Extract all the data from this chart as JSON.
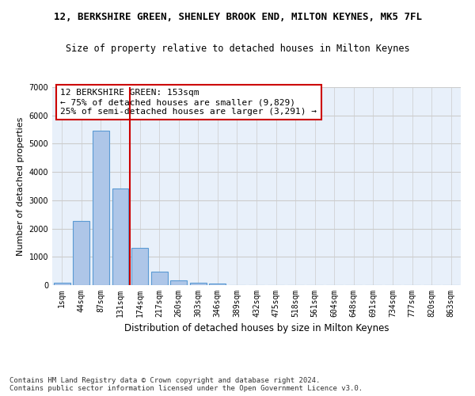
{
  "title": "12, BERKSHIRE GREEN, SHENLEY BROOK END, MILTON KEYNES, MK5 7FL",
  "subtitle": "Size of property relative to detached houses in Milton Keynes",
  "xlabel": "Distribution of detached houses by size in Milton Keynes",
  "ylabel": "Number of detached properties",
  "categories": [
    "1sqm",
    "44sqm",
    "87sqm",
    "131sqm",
    "174sqm",
    "217sqm",
    "260sqm",
    "303sqm",
    "346sqm",
    "389sqm",
    "432sqm",
    "475sqm",
    "518sqm",
    "561sqm",
    "604sqm",
    "648sqm",
    "691sqm",
    "734sqm",
    "777sqm",
    "820sqm",
    "863sqm"
  ],
  "values": [
    75,
    2270,
    5470,
    3430,
    1310,
    470,
    155,
    80,
    55,
    0,
    0,
    0,
    0,
    0,
    0,
    0,
    0,
    0,
    0,
    0,
    0
  ],
  "bar_color": "#aec6e8",
  "bar_edge_color": "#5a9ad4",
  "vline_color": "#cc0000",
  "annotation_text": "12 BERKSHIRE GREEN: 153sqm\n← 75% of detached houses are smaller (9,829)\n25% of semi-detached houses are larger (3,291) →",
  "annotation_box_color": "#ffffff",
  "annotation_box_edge_color": "#cc0000",
  "ylim": [
    0,
    7000
  ],
  "yticks": [
    0,
    1000,
    2000,
    3000,
    4000,
    5000,
    6000,
    7000
  ],
  "grid_color": "#cccccc",
  "bg_color": "#e8f0fa",
  "footnote": "Contains HM Land Registry data © Crown copyright and database right 2024.\nContains public sector information licensed under the Open Government Licence v3.0.",
  "title_fontsize": 9,
  "subtitle_fontsize": 8.5,
  "xlabel_fontsize": 8.5,
  "ylabel_fontsize": 8,
  "tick_fontsize": 7,
  "annotation_fontsize": 8,
  "footnote_fontsize": 6.5
}
